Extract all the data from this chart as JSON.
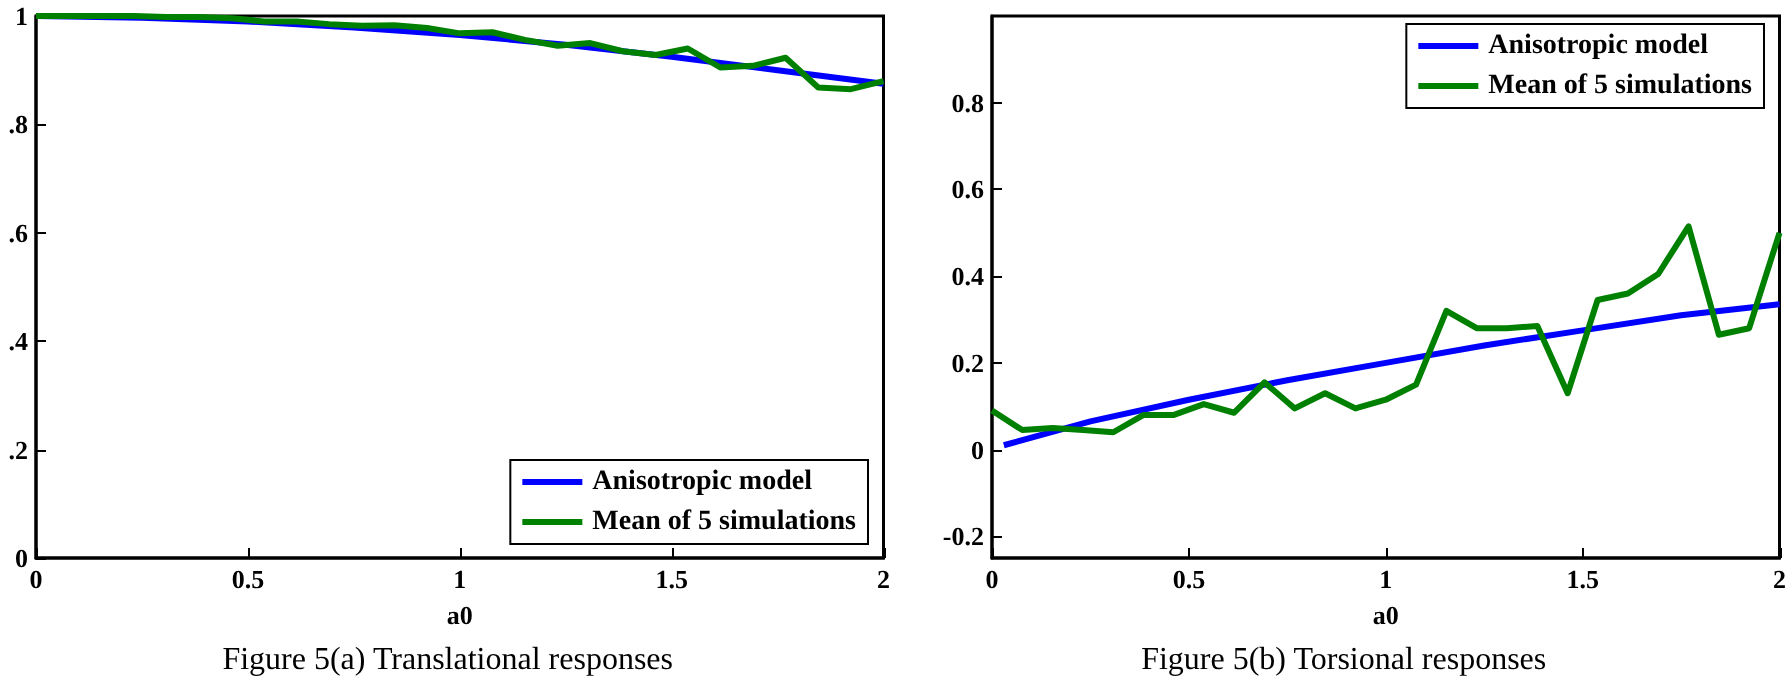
{
  "chart_data": [
    {
      "type": "line",
      "xlabel": "a0",
      "annotations": [
        "Figure 5(a) Translational responses"
      ],
      "xlim": [
        0,
        2
      ],
      "xticks": [
        0,
        0.5,
        1,
        1.5,
        2
      ],
      "ylim": [
        0,
        1
      ],
      "yticks": [
        0,
        {
          "value": 0.2,
          "label": ".2"
        },
        {
          "value": 0.4,
          "label": ".4"
        },
        {
          "value": 0.6,
          "label": ".6"
        },
        {
          "value": 0.8,
          "label": ".8"
        },
        1
      ],
      "grid": false,
      "legend": "bottom right",
      "series": [
        {
          "name": "Anisotropic model",
          "color": "#0000ff",
          "x": [
            0,
            0.25,
            0.5,
            0.75,
            1,
            1.25,
            1.5,
            1.75,
            2
          ],
          "values": [
            1,
            0.997,
            0.99,
            0.979,
            0.965,
            0.947,
            0.925,
            0.9,
            0.875
          ]
        },
        {
          "name": "Mean of 5 simulations",
          "color": "#008000",
          "x": [
            0,
            0.077,
            0.154,
            0.231,
            0.308,
            0.385,
            0.462,
            0.538,
            0.615,
            0.692,
            0.769,
            0.846,
            0.923,
            1,
            1.077,
            1.154,
            1.231,
            1.308,
            1.385,
            1.462,
            1.538,
            1.615,
            1.692,
            1.769,
            1.846,
            1.923,
            2
          ],
          "values": [
            1,
            1,
            1,
            1,
            0.998,
            0.998,
            0.996,
            0.99,
            0.99,
            0.985,
            0.982,
            0.983,
            0.978,
            0.968,
            0.97,
            0.956,
            0.945,
            0.95,
            0.935,
            0.928,
            0.94,
            0.905,
            0.908,
            0.923,
            0.868,
            0.865,
            0.88
          ]
        }
      ]
    },
    {
      "type": "line",
      "xlabel": "a0",
      "annotations": [
        "Figure 5(b) Torsional responses"
      ],
      "xlim": [
        0,
        2
      ],
      "xticks": [
        0,
        0.5,
        1,
        1.5,
        2
      ],
      "ylim": [
        -0.25,
        1
      ],
      "yticks": [
        -0.2,
        0,
        0.2,
        0.4,
        0.6,
        0.8
      ],
      "grid": false,
      "legend": "top right",
      "series": [
        {
          "name": "Anisotropic model",
          "color": "#0000ff",
          "x": [
            0.03,
            0.25,
            0.5,
            0.75,
            1,
            1.25,
            1.5,
            1.75,
            2
          ],
          "values": [
            0.01,
            0.065,
            0.115,
            0.16,
            0.2,
            0.24,
            0.275,
            0.31,
            0.335
          ]
        },
        {
          "name": "Mean of 5 simulations",
          "color": "#008000",
          "x": [
            0,
            0.077,
            0.154,
            0.231,
            0.308,
            0.385,
            0.462,
            0.538,
            0.615,
            0.692,
            0.769,
            0.846,
            0.923,
            1,
            1.077,
            1.154,
            1.231,
            1.308,
            1.385,
            1.462,
            1.538,
            1.615,
            1.692,
            1.769,
            1.846,
            1.923,
            2
          ],
          "values": [
            0.09,
            0.045,
            0.05,
            0.045,
            0.04,
            0.08,
            0.08,
            0.105,
            0.085,
            0.155,
            0.095,
            0.13,
            0.095,
            0.115,
            0.15,
            0.32,
            0.28,
            0.28,
            0.285,
            0.13,
            0.345,
            0.36,
            0.405,
            0.515,
            0.265,
            0.28,
            0.5
          ]
        }
      ]
    }
  ]
}
